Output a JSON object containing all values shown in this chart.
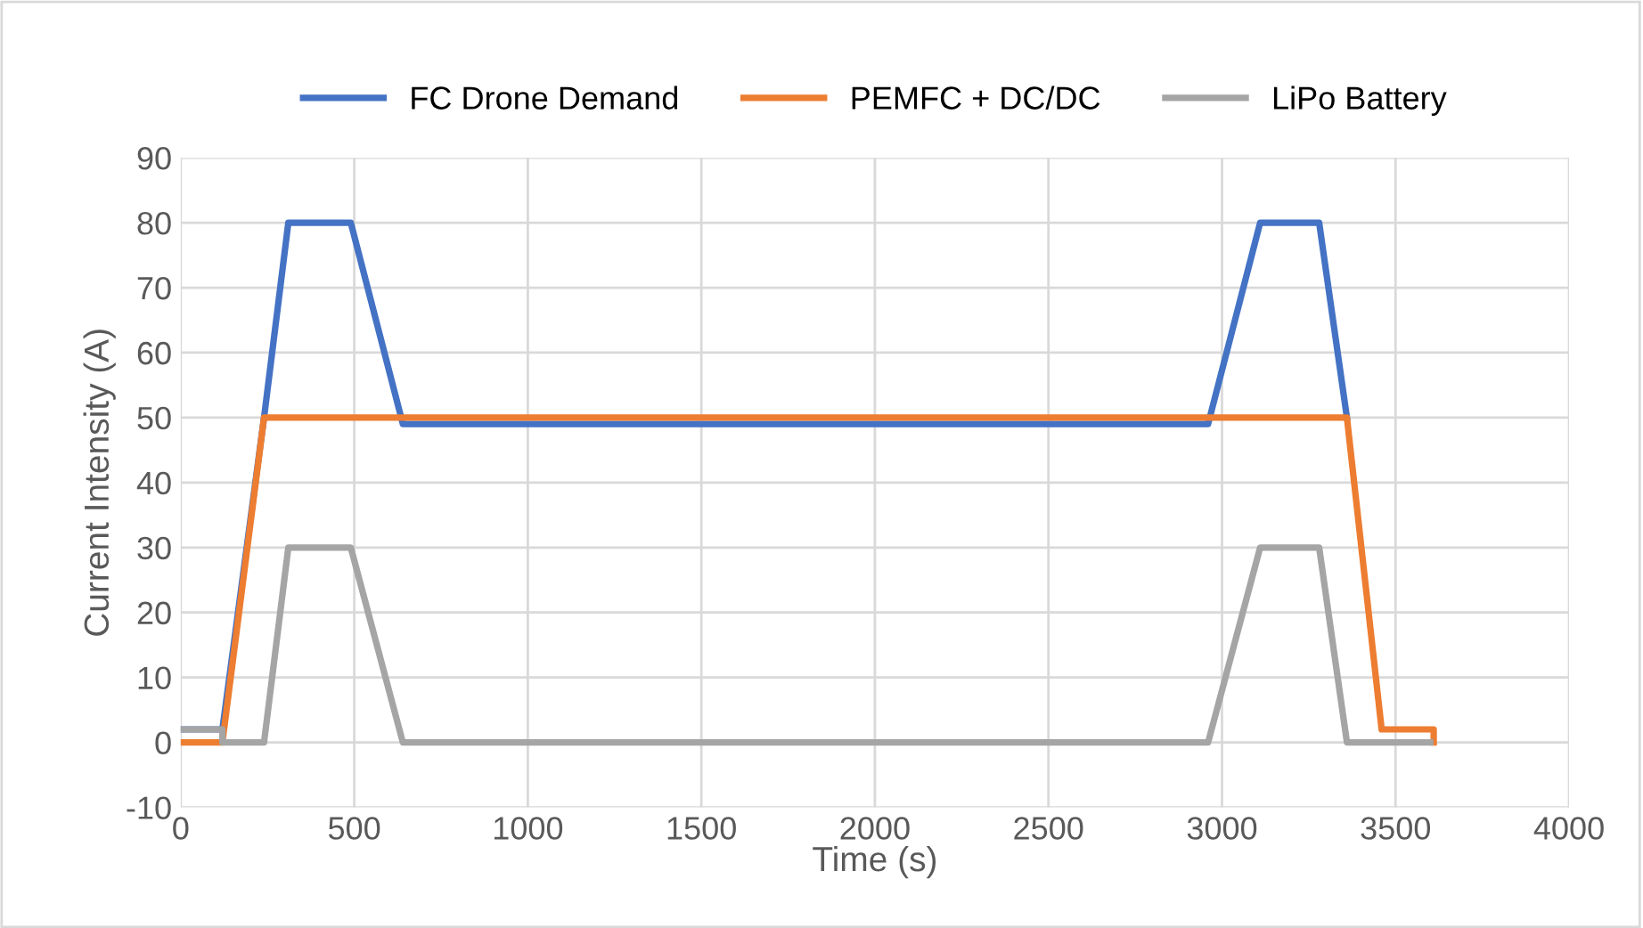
{
  "chart_data": {
    "type": "line",
    "xlabel": "Time (s)",
    "ylabel": "Current Intensity (A)",
    "series": [
      {
        "name": "FC Drone Demand",
        "color": "#4472c4",
        "x": [
          0,
          120,
          240,
          310,
          490,
          640,
          2960,
          3110,
          3280,
          3360
        ],
        "values": [
          2,
          2,
          50,
          80,
          80,
          49,
          49,
          80,
          80,
          50
        ]
      },
      {
        "name": "PEMFC + DC/DC",
        "color": "#ed7d31",
        "x": [
          0,
          120,
          240,
          3360,
          3460,
          3610,
          3610
        ],
        "values": [
          0,
          0,
          50,
          50,
          2,
          2,
          0
        ]
      },
      {
        "name": "LiPo Battery",
        "color": "#a5a5a5",
        "x": [
          0,
          120,
          120,
          240,
          310,
          490,
          640,
          2960,
          3110,
          3280,
          3360,
          3600
        ],
        "values": [
          2,
          2,
          0,
          0,
          30,
          30,
          0,
          0,
          30,
          30,
          0,
          0
        ]
      }
    ],
    "xlim": [
      0,
      4000
    ],
    "xticks": [
      0,
      500,
      1000,
      1500,
      2000,
      2500,
      3000,
      3500,
      4000
    ],
    "ylim": [
      -10,
      90
    ],
    "yticks": [
      -10,
      0,
      10,
      20,
      30,
      40,
      50,
      60,
      70,
      80,
      90
    ],
    "grid": true,
    "legend": "top",
    "marker": "none",
    "line_style": "solid"
  }
}
